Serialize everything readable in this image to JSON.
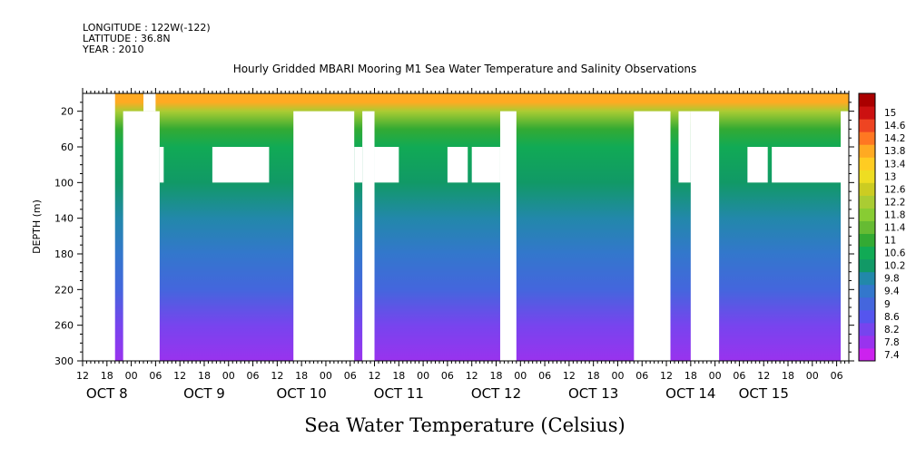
{
  "header": {
    "longitude": "LONGITUDE : 122W(-122)",
    "latitude": "LATITUDE : 36.8N",
    "year": "YEAR : 2010"
  },
  "chart_data": {
    "type": "heatmap",
    "title": "Hourly Gridded MBARI Mooring M1 Sea Water Temperature and Salinity Observations",
    "subtitle": "Sea Water Temperature (Celsius)",
    "ylabel": "DEPTH (m)",
    "xlabel": "",
    "ylim": [
      300,
      0
    ],
    "y_ticks": [
      20,
      60,
      100,
      140,
      180,
      220,
      260,
      300
    ],
    "x_range_hours": [
      0,
      189
    ],
    "x_tick_hours": [
      0,
      6,
      12,
      18,
      24,
      30,
      36,
      42,
      48,
      54,
      60,
      66,
      72,
      78,
      84,
      90,
      96,
      102,
      108,
      114,
      120,
      126,
      132,
      138,
      144,
      150,
      156,
      162,
      168,
      174,
      180,
      186
    ],
    "x_tick_labels": [
      "12",
      "18",
      "00",
      "06",
      "12",
      "18",
      "00",
      "06",
      "12",
      "18",
      "00",
      "06",
      "12",
      "18",
      "00",
      "06",
      "12",
      "18",
      "00",
      "06",
      "12",
      "18",
      "00",
      "06",
      "12",
      "18",
      "00",
      "06",
      "12",
      "18",
      "00",
      "06"
    ],
    "day_labels": [
      {
        "label": "OCT  8",
        "hour": 6
      },
      {
        "label": "OCT  9",
        "hour": 30
      },
      {
        "label": "OCT 10",
        "hour": 54
      },
      {
        "label": "OCT 11",
        "hour": 78
      },
      {
        "label": "OCT 12",
        "hour": 102
      },
      {
        "label": "OCT 13",
        "hour": 126
      },
      {
        "label": "OCT 14",
        "hour": 150
      },
      {
        "label": "OCT 15",
        "hour": 168
      }
    ],
    "colorbar": {
      "levels": [
        7.4,
        7.8,
        8.2,
        8.6,
        9,
        9.4,
        9.8,
        10.2,
        10.6,
        11,
        11.4,
        11.8,
        12.2,
        12.6,
        13,
        13.4,
        13.8,
        14.2,
        14.6,
        15
      ],
      "labels": [
        "7.4",
        "7.8",
        "8.2",
        "8.6",
        "9",
        "9.4",
        "9.8",
        "10.2",
        "10.6",
        "11",
        "11.4",
        "11.8",
        "12.2",
        "12.6",
        "13",
        "13.4",
        "13.8",
        "14.2",
        "14.6",
        "15"
      ],
      "colors": [
        "#cc22ee",
        "#9933ee",
        "#7744ee",
        "#5555ee",
        "#4466dd",
        "#3377cc",
        "#2288aa",
        "#119966",
        "#11aa55",
        "#33aa33",
        "#66bb33",
        "#88cc33",
        "#aacc33",
        "#cccc22",
        "#eedd22",
        "#ffcc22",
        "#ffaa22",
        "#ff7722",
        "#ee4422",
        "#cc1111",
        "#aa0000"
      ]
    },
    "profile": [
      {
        "depth": 10,
        "value": 13.6
      },
      {
        "depth": 20,
        "value": 12.0
      },
      {
        "depth": 40,
        "value": 11.0
      },
      {
        "depth": 60,
        "value": 10.6
      },
      {
        "depth": 100,
        "value": 10.0
      },
      {
        "depth": 140,
        "value": 9.6
      },
      {
        "depth": 180,
        "value": 9.2
      },
      {
        "depth": 220,
        "value": 8.7
      },
      {
        "depth": 260,
        "value": 8.2
      },
      {
        "depth": 300,
        "value": 7.7
      }
    ],
    "missing_blocks": [
      {
        "h0": 0,
        "h1": 8,
        "d0": 0,
        "d1": 300
      },
      {
        "h0": 10,
        "h1": 19,
        "d0": 20,
        "d1": 300
      },
      {
        "h0": 15,
        "h1": 18,
        "d0": 0,
        "d1": 20
      },
      {
        "h0": 19,
        "h1": 20,
        "d0": 60,
        "d1": 100
      },
      {
        "h0": 32,
        "h1": 46,
        "d0": 60,
        "d1": 100
      },
      {
        "h0": 52,
        "h1": 67,
        "d0": 20,
        "d1": 300
      },
      {
        "h0": 67,
        "h1": 69,
        "d0": 60,
        "d1": 100
      },
      {
        "h0": 69,
        "h1": 72,
        "d0": 20,
        "d1": 300
      },
      {
        "h0": 72,
        "h1": 78,
        "d0": 60,
        "d1": 100
      },
      {
        "h0": 90,
        "h1": 95,
        "d0": 60,
        "d1": 100
      },
      {
        "h0": 96,
        "h1": 103,
        "d0": 60,
        "d1": 100
      },
      {
        "h0": 103,
        "h1": 107,
        "d0": 20,
        "d1": 300
      },
      {
        "h0": 136,
        "h1": 145,
        "d0": 20,
        "d1": 300
      },
      {
        "h0": 147,
        "h1": 150,
        "d0": 20,
        "d1": 100
      },
      {
        "h0": 150,
        "h1": 157,
        "d0": 20,
        "d1": 300
      },
      {
        "h0": 164,
        "h1": 169,
        "d0": 60,
        "d1": 100
      },
      {
        "h0": 170,
        "h1": 189,
        "d0": 60,
        "d1": 100
      },
      {
        "h0": 187,
        "h1": 189,
        "d0": 20,
        "d1": 300
      }
    ]
  }
}
